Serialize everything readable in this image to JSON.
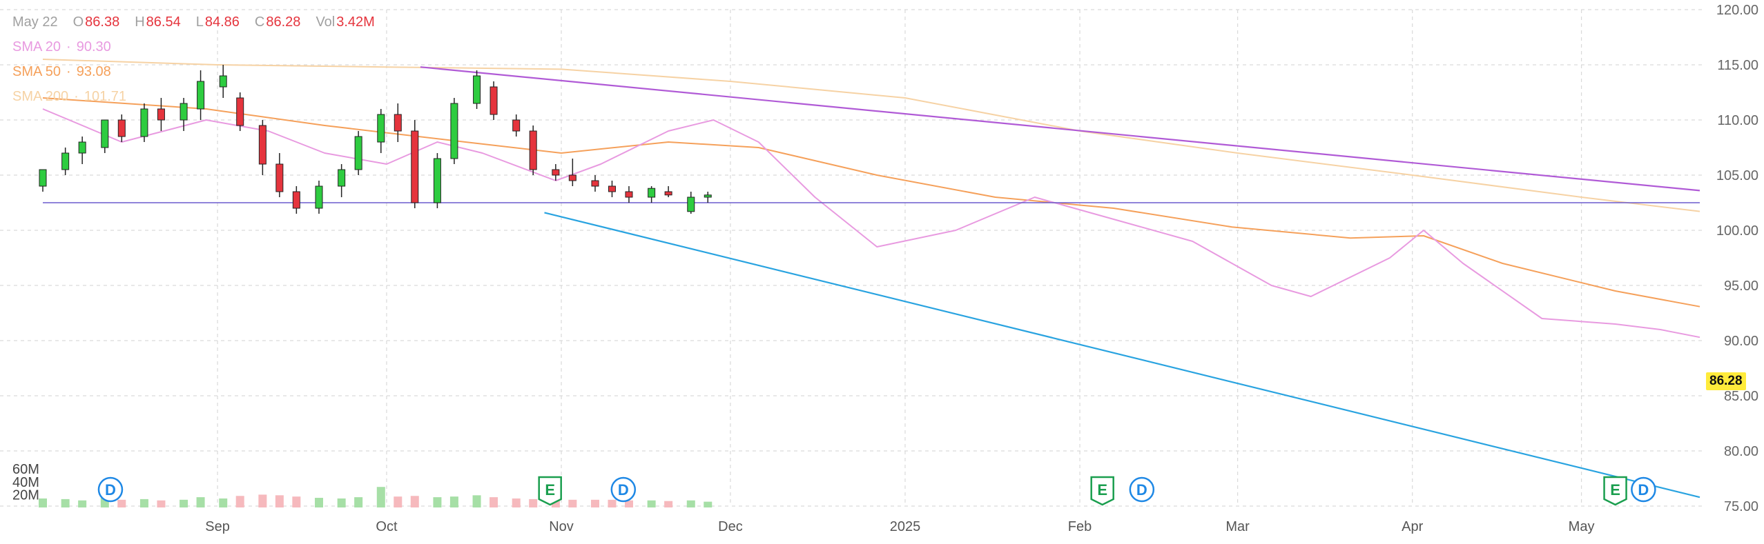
{
  "legend": {
    "date": "May 22",
    "open_label": "O",
    "open": "86.38",
    "high_label": "H",
    "high": "86.54",
    "low_label": "L",
    "low": "84.86",
    "close_label": "C",
    "close": "86.28",
    "vol_label": "Vol",
    "vol": "3.42M",
    "sma20_label": "SMA 20",
    "sma20": "90.30",
    "sma50_label": "SMA 50",
    "sma50": "93.08",
    "sma200_label": "SMA 200",
    "sma200": "101.71"
  },
  "last_price_tag": "86.28",
  "colors": {
    "up": "#2ecc40",
    "down": "#e5343d",
    "sma20": "#e89ae0",
    "sma50": "#f5a05a",
    "sma200": "#f6d2a4",
    "resistance": "#b05ad6",
    "support_trend": "#29a3e0",
    "horizontal": "#6a5acd",
    "vol_up": "#a6dfa6",
    "vol_down": "#f6b9bd"
  },
  "chart_data": {
    "type": "candlestick",
    "x_tick_labels": [
      "Sep",
      "Oct",
      "Nov",
      "Dec",
      "2025",
      "Feb",
      "Mar",
      "Apr",
      "May"
    ],
    "x_tick_dates": [
      "2024-09-01",
      "2024-10-01",
      "2024-11-01",
      "2024-12-01",
      "2025-01-01",
      "2025-02-01",
      "2025-03-01",
      "2025-04-01",
      "2025-05-01"
    ],
    "date_range": [
      "2024-08-01",
      "2025-05-22"
    ],
    "y_axis": {
      "ticks": [
        "75.00",
        "80.00",
        "85.00",
        "90.00",
        "95.00",
        "100.00",
        "105.00",
        "110.00",
        "115.00",
        "120.00"
      ],
      "ylim": [
        75,
        120
      ]
    },
    "volume_axis": {
      "ticks": [
        "20M",
        "40M",
        "60M"
      ]
    },
    "events": [
      {
        "label": "D",
        "date": "2024-08-13"
      },
      {
        "label": "E",
        "date": "2024-10-30"
      },
      {
        "label": "D",
        "date": "2024-11-12"
      },
      {
        "label": "E",
        "date": "2025-02-05"
      },
      {
        "label": "D",
        "date": "2025-02-12"
      },
      {
        "label": "E",
        "date": "2025-05-07"
      },
      {
        "label": "D",
        "date": "2025-05-12"
      }
    ],
    "series": [
      {
        "name": "SMA 20",
        "points": [
          [
            "2024-08-01",
            111
          ],
          [
            "2024-08-15",
            108
          ],
          [
            "2024-08-30",
            110
          ],
          [
            "2024-09-10",
            109
          ],
          [
            "2024-09-20",
            107
          ],
          [
            "2024-10-01",
            106
          ],
          [
            "2024-10-10",
            108
          ],
          [
            "2024-10-18",
            107
          ],
          [
            "2024-10-31",
            104.5
          ],
          [
            "2024-11-08",
            106
          ],
          [
            "2024-11-20",
            109
          ],
          [
            "2024-11-28",
            110
          ],
          [
            "2024-12-06",
            108
          ],
          [
            "2024-12-16",
            103
          ],
          [
            "2024-12-27",
            98.5
          ],
          [
            "2025-01-10",
            100
          ],
          [
            "2025-01-24",
            103
          ],
          [
            "2025-02-07",
            101
          ],
          [
            "2025-02-21",
            99
          ],
          [
            "2025-03-07",
            95
          ],
          [
            "2025-03-14",
            94
          ],
          [
            "2025-03-28",
            97.5
          ],
          [
            "2025-04-03",
            100
          ],
          [
            "2025-04-10",
            97
          ],
          [
            "2025-04-24",
            92
          ],
          [
            "2025-05-07",
            91.5
          ],
          [
            "2025-05-15",
            91
          ],
          [
            "2025-05-22",
            90.3
          ]
        ]
      },
      {
        "name": "SMA 50",
        "points": [
          [
            "2024-08-01",
            112
          ],
          [
            "2024-08-30",
            111
          ],
          [
            "2024-09-20",
            109.5
          ],
          [
            "2024-10-15",
            108
          ],
          [
            "2024-11-01",
            107
          ],
          [
            "2024-11-20",
            108
          ],
          [
            "2024-12-06",
            107.5
          ],
          [
            "2024-12-27",
            105
          ],
          [
            "2025-01-17",
            103
          ],
          [
            "2025-02-07",
            102
          ],
          [
            "2025-02-28",
            100.3
          ],
          [
            "2025-03-21",
            99.3
          ],
          [
            "2025-04-03",
            99.5
          ],
          [
            "2025-04-17",
            97
          ],
          [
            "2025-05-07",
            94.5
          ],
          [
            "2025-05-22",
            93.08
          ]
        ]
      },
      {
        "name": "SMA 200",
        "points": [
          [
            "2024-08-01",
            115.5
          ],
          [
            "2024-09-01",
            115
          ],
          [
            "2024-10-01",
            114.8
          ],
          [
            "2024-11-01",
            114.6
          ],
          [
            "2024-12-01",
            113.5
          ],
          [
            "2025-01-01",
            112
          ],
          [
            "2025-02-01",
            109
          ],
          [
            "2025-03-01",
            107
          ],
          [
            "2025-04-01",
            105
          ],
          [
            "2025-05-01",
            103
          ],
          [
            "2025-05-22",
            101.71
          ]
        ]
      }
    ],
    "trendlines": [
      {
        "name": "resistance",
        "from": [
          "2024-10-07",
          114.8
        ],
        "to": [
          "2025-05-22",
          103.6
        ]
      },
      {
        "name": "falling support",
        "from": [
          "2024-10-29",
          101.6
        ],
        "to": [
          "2025-05-22",
          75.8
        ]
      },
      {
        "name": "horizontal level",
        "from": [
          "2024-08-01",
          102.5
        ],
        "to": [
          "2025-05-22",
          102.5
        ]
      }
    ],
    "candles": [
      [
        "2024-08-01",
        104,
        105.5,
        103.5,
        105.5,
        14
      ],
      [
        "2024-08-05",
        105.5,
        107.5,
        105,
        107,
        13
      ],
      [
        "2024-08-08",
        107,
        108.5,
        106,
        108,
        11
      ],
      [
        "2024-08-12",
        107.5,
        110,
        107,
        110,
        15
      ],
      [
        "2024-08-15",
        110,
        110.5,
        108,
        108.5,
        12
      ],
      [
        "2024-08-19",
        108.5,
        111.5,
        108,
        111,
        13
      ],
      [
        "2024-08-22",
        111,
        112,
        109,
        110,
        11
      ],
      [
        "2024-08-26",
        110,
        112,
        109,
        111.5,
        12
      ],
      [
        "2024-08-29",
        111,
        114.5,
        110,
        113.5,
        16
      ],
      [
        "2024-09-02",
        113,
        115,
        112,
        114,
        14
      ],
      [
        "2024-09-05",
        112,
        112.5,
        109,
        109.5,
        18
      ],
      [
        "2024-09-09",
        109.5,
        110,
        105,
        106,
        20
      ],
      [
        "2024-09-12",
        106,
        107,
        103,
        103.5,
        19
      ],
      [
        "2024-09-15",
        103.5,
        104,
        101.5,
        102,
        17
      ],
      [
        "2024-09-19",
        102,
        104.5,
        101.5,
        104,
        15
      ],
      [
        "2024-09-23",
        104,
        106,
        103,
        105.5,
        14
      ],
      [
        "2024-09-26",
        105.5,
        109,
        105,
        108.5,
        16
      ],
      [
        "2024-09-30",
        108,
        111,
        107,
        110.5,
        32
      ],
      [
        "2024-10-03",
        110.5,
        111.5,
        108,
        109,
        17
      ],
      [
        "2024-10-06",
        109,
        110,
        102,
        102.5,
        18
      ],
      [
        "2024-10-10",
        102.5,
        107,
        102,
        106.5,
        16
      ],
      [
        "2024-10-13",
        106.5,
        112,
        106,
        111.5,
        17
      ],
      [
        "2024-10-17",
        111.5,
        114.5,
        111,
        114,
        19
      ],
      [
        "2024-10-20",
        113,
        113.5,
        110,
        110.5,
        16
      ],
      [
        "2024-10-24",
        110,
        110.5,
        108.5,
        109,
        14
      ],
      [
        "2024-10-27",
        109,
        109.5,
        105,
        105.5,
        13
      ],
      [
        "2024-10-31",
        105.5,
        106,
        104.5,
        105,
        13
      ],
      [
        "2024-11-03",
        105,
        106.5,
        104,
        104.5,
        12
      ],
      [
        "2024-11-07",
        104.5,
        105,
        103.5,
        104,
        12
      ],
      [
        "2024-11-10",
        104,
        104.5,
        103,
        103.5,
        12
      ],
      [
        "2024-11-13",
        103.5,
        104,
        102.5,
        103,
        11
      ],
      [
        "2024-11-17",
        103,
        104,
        102.5,
        103.8,
        11
      ],
      [
        "2024-11-20",
        103.5,
        104,
        103,
        103.2,
        10
      ],
      [
        "2024-11-24",
        101.7,
        103.5,
        101.5,
        103,
        11
      ],
      [
        "2024-11-27",
        103,
        103.5,
        102.5,
        103.2,
        9
      ]
    ]
  }
}
